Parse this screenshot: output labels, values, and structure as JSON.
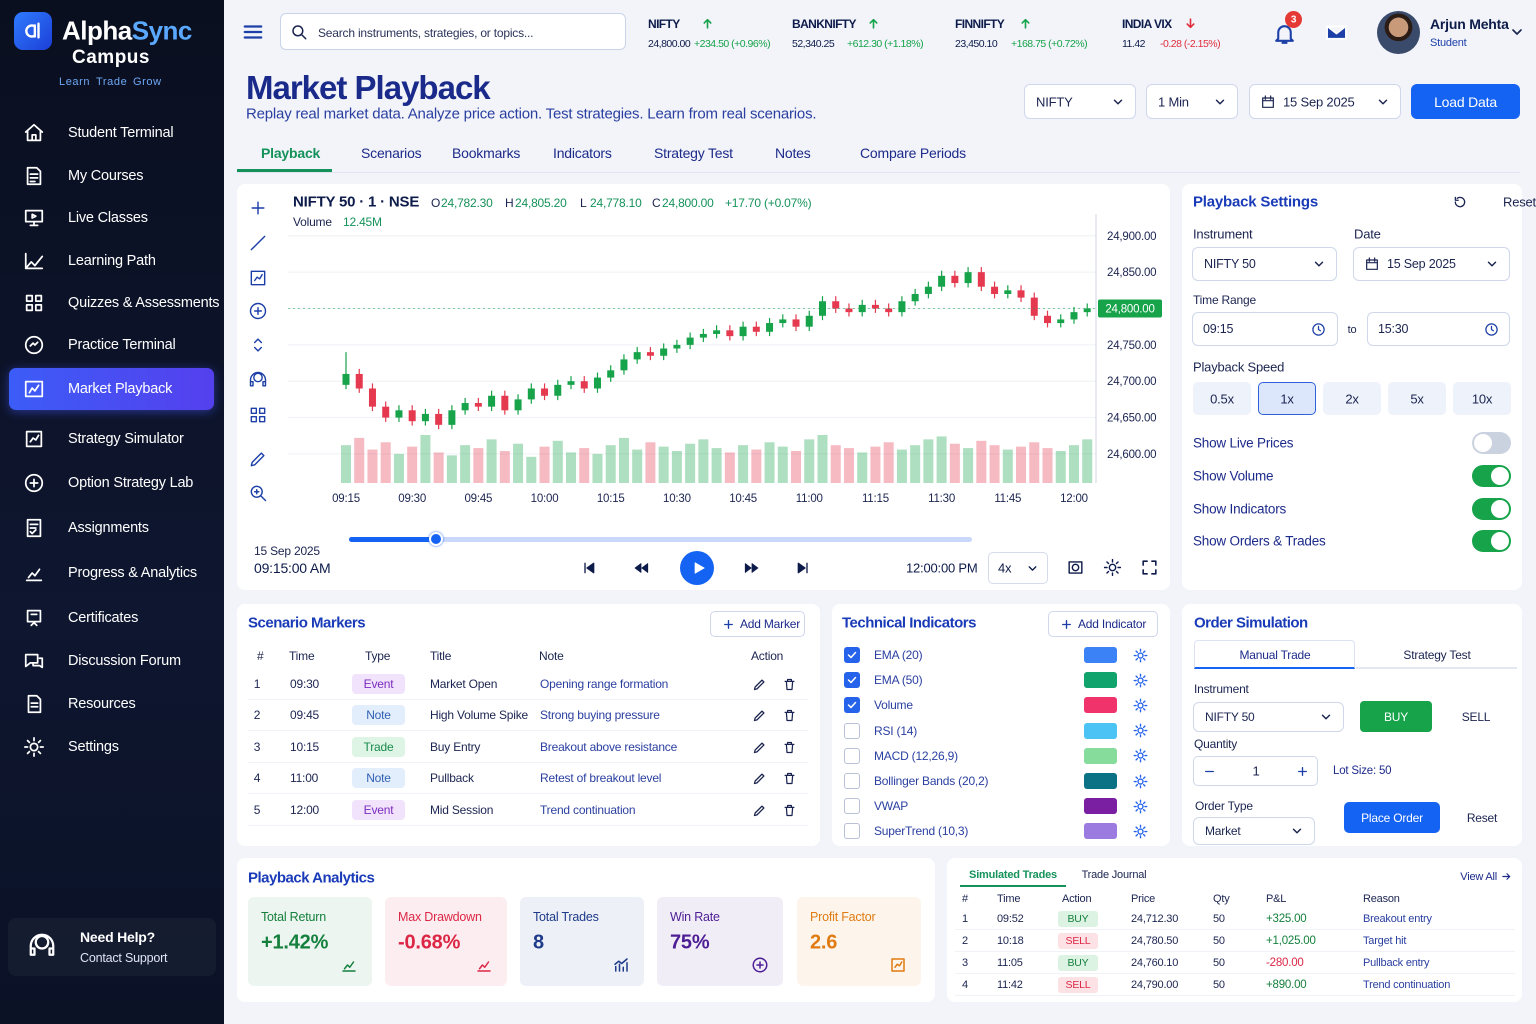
{
  "brand": {
    "name": [
      "Alpha",
      "Sync"
    ],
    "subtitle": "Campus",
    "tagline": [
      "Learn",
      "Trade",
      "Grow"
    ]
  },
  "nav": {
    "items": [
      "Student Terminal",
      "My Courses",
      "Live Classes",
      "Learning Path",
      "Quizzes & Assessments",
      "Practice Terminal",
      "Market Playback",
      "Strategy Simulator",
      "Option Strategy Lab",
      "Assignments",
      "Progress & Analytics",
      "Certificates",
      "Discussion Forum",
      "Resources",
      "Settings"
    ],
    "active": 6
  },
  "help": {
    "title": "Need Help?",
    "text": "Contact Support"
  },
  "search": {
    "placeholder": "Search instruments, strategies, or topics..."
  },
  "tickers": [
    {
      "name": "NIFTY",
      "price": "24,800.00",
      "change": "+234.50 (+0.96%)",
      "direction": "up"
    },
    {
      "name": "BANKNIFTY",
      "price": "52,340.25",
      "change": "+612.30 (+1.18%)",
      "direction": "up"
    },
    {
      "name": "FINNIFTY",
      "price": "23,450.10",
      "change": "+168.75 (+0.72%)",
      "direction": "up"
    },
    {
      "name": "INDIA VIX",
      "price": "11.42",
      "change": "-0.28 (-2.15%)",
      "direction": "down"
    }
  ],
  "notifications": 3,
  "user": {
    "name": "Arjun Mehta",
    "role": "Student"
  },
  "header": {
    "title": "Market Playback",
    "subtitle": "Replay real market data. Analyze price action. Test strategies. Learn from real scenarios.",
    "instrument": "NIFTY",
    "interval": "1 Min",
    "date": "15 Sep 2025",
    "load": "Load Data"
  },
  "tabs": {
    "items": [
      "Playback",
      "Scenarios",
      "Bookmarks",
      "Indicators",
      "Strategy Test",
      "Notes",
      "Compare Periods"
    ],
    "active": 0
  },
  "chart_header": {
    "symbol": "NIFTY 50 · 1 · NSE",
    "ohlc": [
      {
        "label": "O",
        "value": "24,782.30"
      },
      {
        "label": "H",
        "value": "24,805.20"
      },
      {
        "label": "L",
        "value": "24,778.10"
      },
      {
        "label": "C",
        "value": "24,800.00"
      }
    ],
    "change": "+17.70 (+0.07%)",
    "volume_label": "Volume",
    "volume": "12.45M"
  },
  "chart_data": {
    "type": "candlestick",
    "categories": [
      "09:15",
      null,
      null,
      null,
      null,
      "09:30",
      null,
      null,
      null,
      null,
      "09:45",
      null,
      null,
      null,
      null,
      "10:00",
      null,
      null,
      null,
      null,
      "10:15",
      null,
      null,
      null,
      null,
      "10:30",
      null,
      null,
      null,
      null,
      "10:45",
      null,
      null,
      null,
      null,
      "11:00",
      null,
      null,
      null,
      null,
      "11:15",
      null,
      null,
      null,
      null,
      "11:30",
      null,
      null,
      null,
      null,
      "11:45",
      null,
      null,
      null,
      null,
      "12:00",
      null
    ],
    "open": [
      24695,
      24710,
      24690,
      24665,
      24650,
      24660,
      24645,
      24655,
      24640,
      24660,
      24670,
      24665,
      24680,
      24660,
      24675,
      24690,
      24680,
      24695,
      24700,
      24690,
      24705,
      24715,
      24730,
      24740,
      24735,
      24745,
      24750,
      24760,
      24765,
      24770,
      24762,
      24775,
      24768,
      24780,
      24785,
      24775,
      24790,
      24810,
      24800,
      24795,
      24805,
      24800,
      24795,
      24810,
      24820,
      24830,
      24845,
      24835,
      24850,
      24830,
      24820,
      24825,
      24815,
      24790,
      24780,
      24785,
      24795
    ],
    "high": [
      24740,
      24717,
      24697,
      24672,
      24667,
      24667,
      24662,
      24662,
      24667,
      24677,
      24677,
      24687,
      24687,
      24682,
      24697,
      24697,
      24702,
      24707,
      24707,
      24712,
      24722,
      24737,
      24747,
      24747,
      24752,
      24757,
      24767,
      24772,
      24777,
      24777,
      24782,
      24782,
      24787,
      24792,
      24792,
      24797,
      24817,
      24817,
      24807,
      24812,
      24812,
      24807,
      24817,
      24827,
      24837,
      24852,
      24852,
      24857,
      24857,
      24837,
      24832,
      24832,
      24822,
      24797,
      24792,
      24802,
      24807
    ],
    "low": [
      24689,
      24684,
      24659,
      24644,
      24644,
      24639,
      24639,
      24634,
      24634,
      24654,
      24659,
      24659,
      24654,
      24654,
      24669,
      24674,
      24674,
      24689,
      24684,
      24684,
      24699,
      24709,
      24724,
      24729,
      24729,
      24739,
      24744,
      24754,
      24759,
      24756,
      24756,
      24762,
      24762,
      24774,
      24769,
      24769,
      24784,
      24794,
      24789,
      24789,
      24794,
      24789,
      24789,
      24804,
      24814,
      24824,
      24829,
      24829,
      24824,
      24814,
      24814,
      24809,
      24784,
      24774,
      24774,
      24779,
      24789
    ],
    "close": [
      24710,
      24690,
      24665,
      24650,
      24660,
      24645,
      24655,
      24640,
      24660,
      24670,
      24665,
      24680,
      24660,
      24675,
      24690,
      24680,
      24695,
      24700,
      24690,
      24705,
      24715,
      24730,
      24740,
      24735,
      24745,
      24750,
      24760,
      24765,
      24770,
      24762,
      24775,
      24768,
      24780,
      24785,
      24775,
      24790,
      24810,
      24800,
      24795,
      24805,
      24800,
      24795,
      24810,
      24820,
      24830,
      24845,
      24835,
      24850,
      24830,
      24820,
      24825,
      24815,
      24790,
      24780,
      24785,
      24795,
      24800
    ],
    "volume": [
      260,
      310,
      230,
      280,
      200,
      250,
      330,
      210,
      190,
      260,
      240,
      300,
      220,
      270,
      180,
      250,
      290,
      210,
      240,
      200,
      260,
      310,
      230,
      280,
      250,
      220,
      270,
      300,
      240,
      210,
      260,
      230,
      280,
      250,
      220,
      300,
      330,
      260,
      240,
      210,
      250,
      280,
      230,
      260,
      300,
      320,
      270,
      240,
      290,
      260,
      230,
      250,
      280,
      240,
      220,
      260,
      300
    ],
    "ylim": [
      24560,
      24930
    ],
    "yticks": [
      {
        "value": 24600,
        "label": "24,600.00"
      },
      {
        "value": 24650,
        "label": "24,650.00"
      },
      {
        "value": 24700,
        "label": "24,700.00"
      },
      {
        "value": 24750,
        "label": "24,750.00"
      },
      {
        "value": 24800,
        "label": "24,800.00"
      },
      {
        "value": 24850,
        "label": "24,850.00"
      },
      {
        "value": 24900,
        "label": "24,900.00"
      }
    ],
    "last_price": {
      "value": 24800,
      "label": "24,800.00"
    },
    "grid": true,
    "up_color": "#16a34a",
    "down_color": "#e5394f"
  },
  "player": {
    "date": "15 Sep 2025",
    "time": "09:15:00 AM",
    "end_time": "12:00:00 PM",
    "speed": "4x"
  },
  "settings": {
    "title": "Playback Settings",
    "reset": "Reset",
    "instrument_label": "Instrument",
    "instrument": "NIFTY 50",
    "date_label": "Date",
    "date": "15 Sep 2025",
    "time_range_label": "Time Range",
    "start": "09:15",
    "to": "to",
    "end": "15:30",
    "speed_label": "Playback Speed",
    "speeds": [
      "0.5x",
      "1x",
      "2x",
      "5x",
      "10x"
    ],
    "speed_active": 1,
    "toggles": [
      {
        "label": "Show Live Prices",
        "on": false
      },
      {
        "label": "Show Volume",
        "on": true
      },
      {
        "label": "Show Indicators",
        "on": true
      },
      {
        "label": "Show Orders & Trades",
        "on": true
      }
    ]
  },
  "markers": {
    "title": "Scenario Markers",
    "add": "Add Marker",
    "columns": [
      "#",
      "Time",
      "Type",
      "Title",
      "Note",
      "Action"
    ],
    "rows": [
      [
        1,
        "09:30",
        "Event",
        "Market Open",
        "Opening range formation"
      ],
      [
        2,
        "09:45",
        "Note",
        "High Volume Spike",
        "Strong buying pressure"
      ],
      [
        3,
        "10:15",
        "Trade",
        "Buy Entry",
        "Breakout above resistance"
      ],
      [
        4,
        "11:00",
        "Note",
        "Pullback",
        "Retest of breakout level"
      ],
      [
        5,
        "12:00",
        "Event",
        "Mid Session",
        "Trend continuation"
      ]
    ]
  },
  "indicators": {
    "title": "Technical Indicators",
    "add": "Add Indicator",
    "items": [
      {
        "name": "EMA (20)",
        "checked": true,
        "color": "#3b82f6"
      },
      {
        "name": "EMA (50)",
        "checked": true,
        "color": "#10a36b"
      },
      {
        "name": "Volume",
        "checked": true,
        "color": "#f0336b"
      },
      {
        "name": "RSI (14)",
        "checked": false,
        "color": "#4cc3f5"
      },
      {
        "name": "MACD (12,26,9)",
        "checked": false,
        "color": "#86dc9a"
      },
      {
        "name": "Bollinger Bands (20,2)",
        "checked": false,
        "color": "#0b7285"
      },
      {
        "name": "VWAP",
        "checked": false,
        "color": "#7b1fa2"
      },
      {
        "name": "SuperTrend (10,3)",
        "checked": false,
        "color": "#9b7be0"
      }
    ]
  },
  "order": {
    "title": "Order Simulation",
    "tabs": [
      "Manual Trade",
      "Strategy Test"
    ],
    "tab_active": 0,
    "instrument_label": "Instrument",
    "instrument": "NIFTY 50",
    "buy": "BUY",
    "sell": "SELL",
    "quantity_label": "Quantity",
    "quantity": 1,
    "lot_size": "Lot Size: 50",
    "order_type_label": "Order Type",
    "order_type": "Market",
    "place": "Place Order",
    "reset": "Reset"
  },
  "analytics": {
    "title": "Playback Analytics",
    "cards": [
      {
        "label": "Total Return",
        "value": "+1.42%",
        "color": "#15803d"
      },
      {
        "label": "Max Drawdown",
        "value": "-0.68%",
        "color": "#dc2645"
      },
      {
        "label": "Total Trades",
        "value": 8,
        "color": "#1e3a8a"
      },
      {
        "label": "Win Rate",
        "value": "75%",
        "color": "#4c1d95"
      },
      {
        "label": "Profit Factor",
        "value": 2.6,
        "color": "#e07b12"
      }
    ]
  },
  "trades": {
    "tabs": [
      "Simulated Trades",
      "Trade Journal"
    ],
    "tab_active": 0,
    "view_all": "View All",
    "columns": [
      "#",
      "Time",
      "Action",
      "Price",
      "Qty",
      "P&L",
      "Reason"
    ],
    "rows": [
      [
        1,
        "09:52",
        "BUY",
        "24,712.30",
        50,
        "+325.00",
        "Breakout entry"
      ],
      [
        2,
        "10:18",
        "SELL",
        "24,780.50",
        50,
        "+1,025.00",
        "Target hit"
      ],
      [
        3,
        "11:05",
        "BUY",
        "24,760.10",
        50,
        "-280.00",
        "Pullback entry"
      ],
      [
        4,
        "11:42",
        "SELL",
        "24,790.00",
        50,
        "+890.00",
        "Trend continuation"
      ]
    ]
  }
}
